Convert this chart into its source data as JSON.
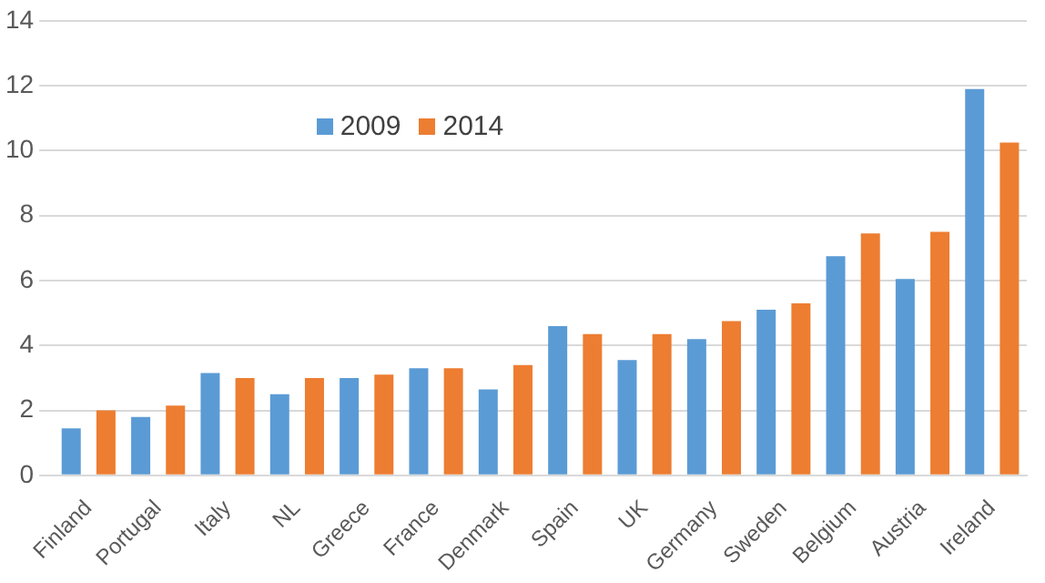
{
  "chart_data": {
    "type": "bar",
    "categories": [
      "Finland",
      "Portugal",
      "Italy",
      "NL",
      "Greece",
      "France",
      "Denmark",
      "Spain",
      "UK",
      "Germany",
      "Sweden",
      "Belgium",
      "Austria",
      "Ireland"
    ],
    "series": [
      {
        "name": "2009",
        "color": "#5b9bd5",
        "values": [
          1.45,
          1.8,
          3.15,
          2.5,
          3.0,
          3.3,
          2.65,
          4.6,
          3.55,
          4.2,
          5.1,
          6.75,
          6.05,
          11.9
        ]
      },
      {
        "name": "2014",
        "color": "#ed7d31",
        "values": [
          2.0,
          2.15,
          3.0,
          3.0,
          3.1,
          3.3,
          3.4,
          4.35,
          4.35,
          4.75,
          5.3,
          7.45,
          7.5,
          10.25
        ]
      }
    ],
    "ylim": [
      0,
      14
    ],
    "yticks": [
      0,
      2,
      4,
      6,
      8,
      10,
      12,
      14
    ],
    "grid": "y",
    "legend": "top left"
  }
}
